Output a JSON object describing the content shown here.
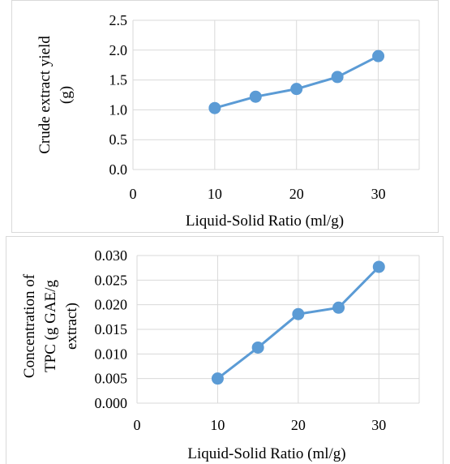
{
  "colors": {
    "series": "#5b9bd5",
    "grid": "#d9d9d9",
    "text": "#000000"
  },
  "chart_data": [
    {
      "type": "scatter",
      "title": "",
      "xlabel": "Liquid-Solid Ratio (ml/g)",
      "ylabel_lines": [
        "Crude extract yield",
        "(g)"
      ],
      "xlim": [
        0,
        35
      ],
      "ylim": [
        0,
        2.5
      ],
      "x_ticks": [
        "0",
        "10",
        "20",
        "30"
      ],
      "y_ticks": [
        "0.0",
        "0.5",
        "1.0",
        "1.5",
        "2.0",
        "2.5"
      ],
      "grid": "vertical and horizontal major gridlines",
      "series": [
        {
          "x": [
            10,
            15,
            20,
            25,
            30
          ],
          "y": [
            1.03,
            1.22,
            1.35,
            1.55,
            1.9
          ]
        }
      ]
    },
    {
      "type": "scatter",
      "title": "",
      "xlabel": "Liquid-Solid Ratio (ml/g)",
      "ylabel_lines": [
        "Concentration of",
        "TPC (g GAE/g",
        "extract)"
      ],
      "xlim": [
        0,
        35
      ],
      "ylim": [
        0,
        0.03
      ],
      "x_ticks": [
        "0",
        "10",
        "20",
        "30"
      ],
      "y_ticks": [
        "0.000",
        "0.005",
        "0.010",
        "0.015",
        "0.020",
        "0.025",
        "0.030"
      ],
      "grid": "vertical and horizontal major gridlines",
      "series": [
        {
          "x": [
            10,
            15,
            20,
            25,
            30
          ],
          "y": [
            0.005,
            0.0113,
            0.0181,
            0.0194,
            0.0277
          ]
        }
      ]
    }
  ]
}
